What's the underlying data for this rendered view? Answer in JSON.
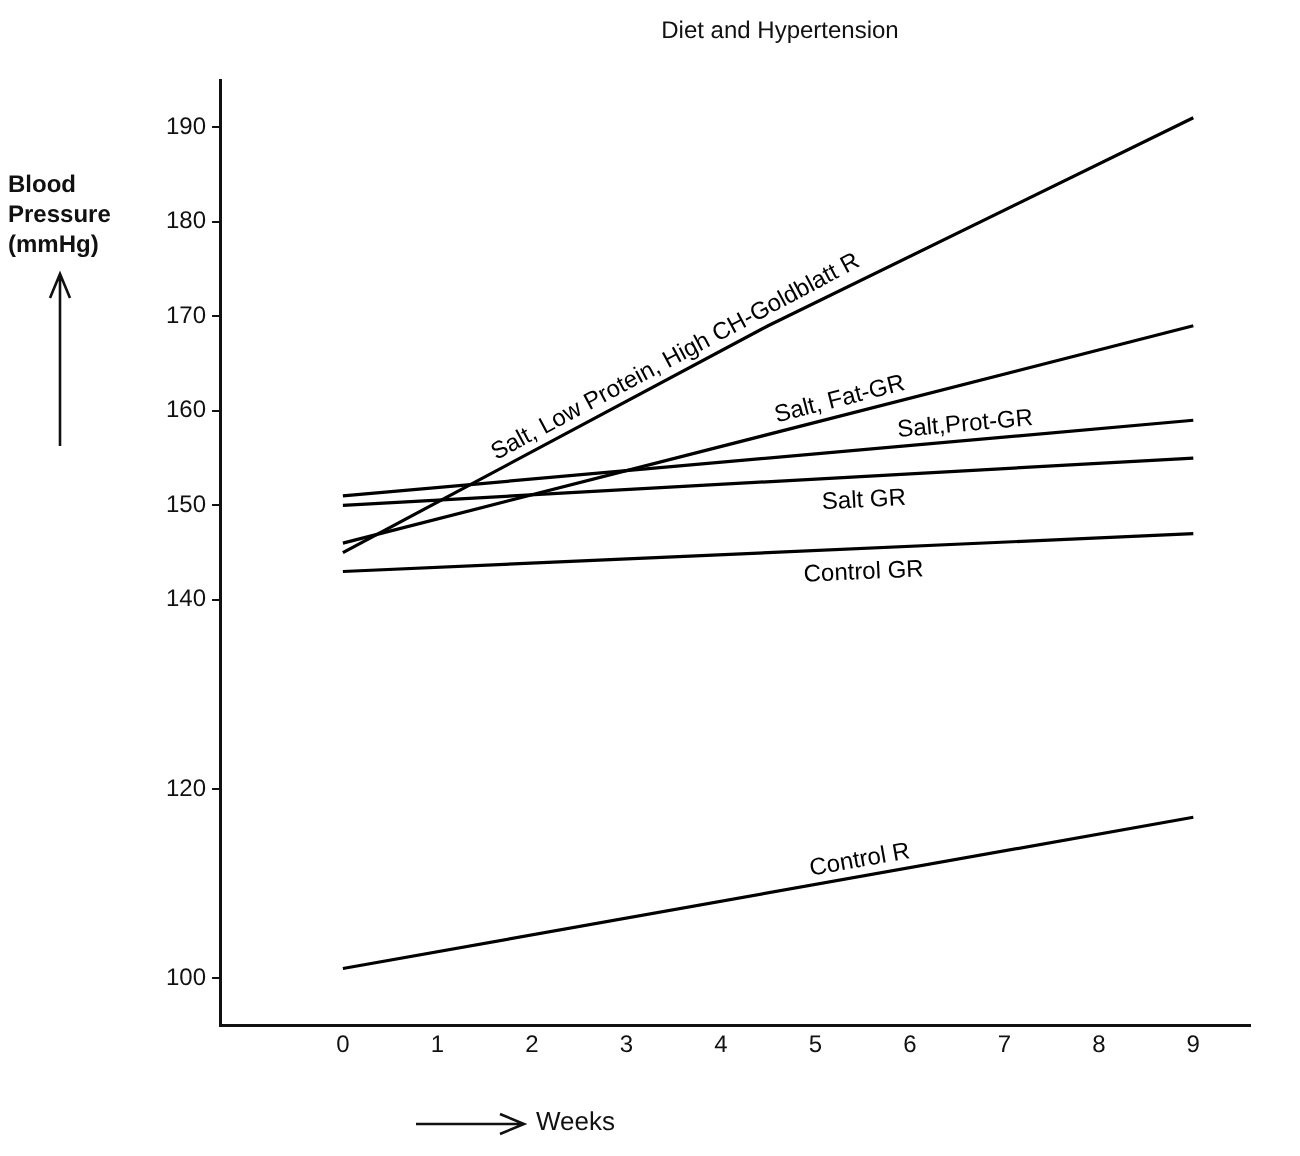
{
  "chart_data": {
    "type": "line",
    "title": "Diet and Hypertension",
    "xlabel": "Weeks",
    "ylabel": "Blood Pressure (mmHg)",
    "xlim": [
      -1.3,
      9.6
    ],
    "xticks": [
      0,
      1,
      2,
      3,
      4,
      5,
      6,
      7,
      8,
      9
    ],
    "ylim": [
      95,
      195
    ],
    "yticks": [
      100,
      120,
      140,
      150,
      160,
      170,
      180,
      190
    ],
    "marker": "none",
    "series": [
      {
        "name": "Salt, Low Protein, High CH-Goldblatt R",
        "color": "#000000",
        "x": [
          0,
          4.5,
          9
        ],
        "values": [
          145,
          169,
          191
        ]
      },
      {
        "name": "Salt, Fat-GR",
        "color": "#000000",
        "x": [
          0,
          9
        ],
        "values": [
          146,
          169
        ]
      },
      {
        "name": "Salt,Prot-GR",
        "color": "#000000",
        "x": [
          0,
          9
        ],
        "values": [
          151,
          159
        ]
      },
      {
        "name": "Salt GR",
        "color": "#000000",
        "x": [
          0,
          9
        ],
        "values": [
          150,
          155
        ]
      },
      {
        "name": "Control GR",
        "color": "#000000",
        "x": [
          0,
          9
        ],
        "values": [
          143,
          147
        ]
      },
      {
        "name": "Control R",
        "color": "#000000",
        "x": [
          0,
          9
        ],
        "values": [
          101,
          117
        ]
      }
    ]
  }
}
